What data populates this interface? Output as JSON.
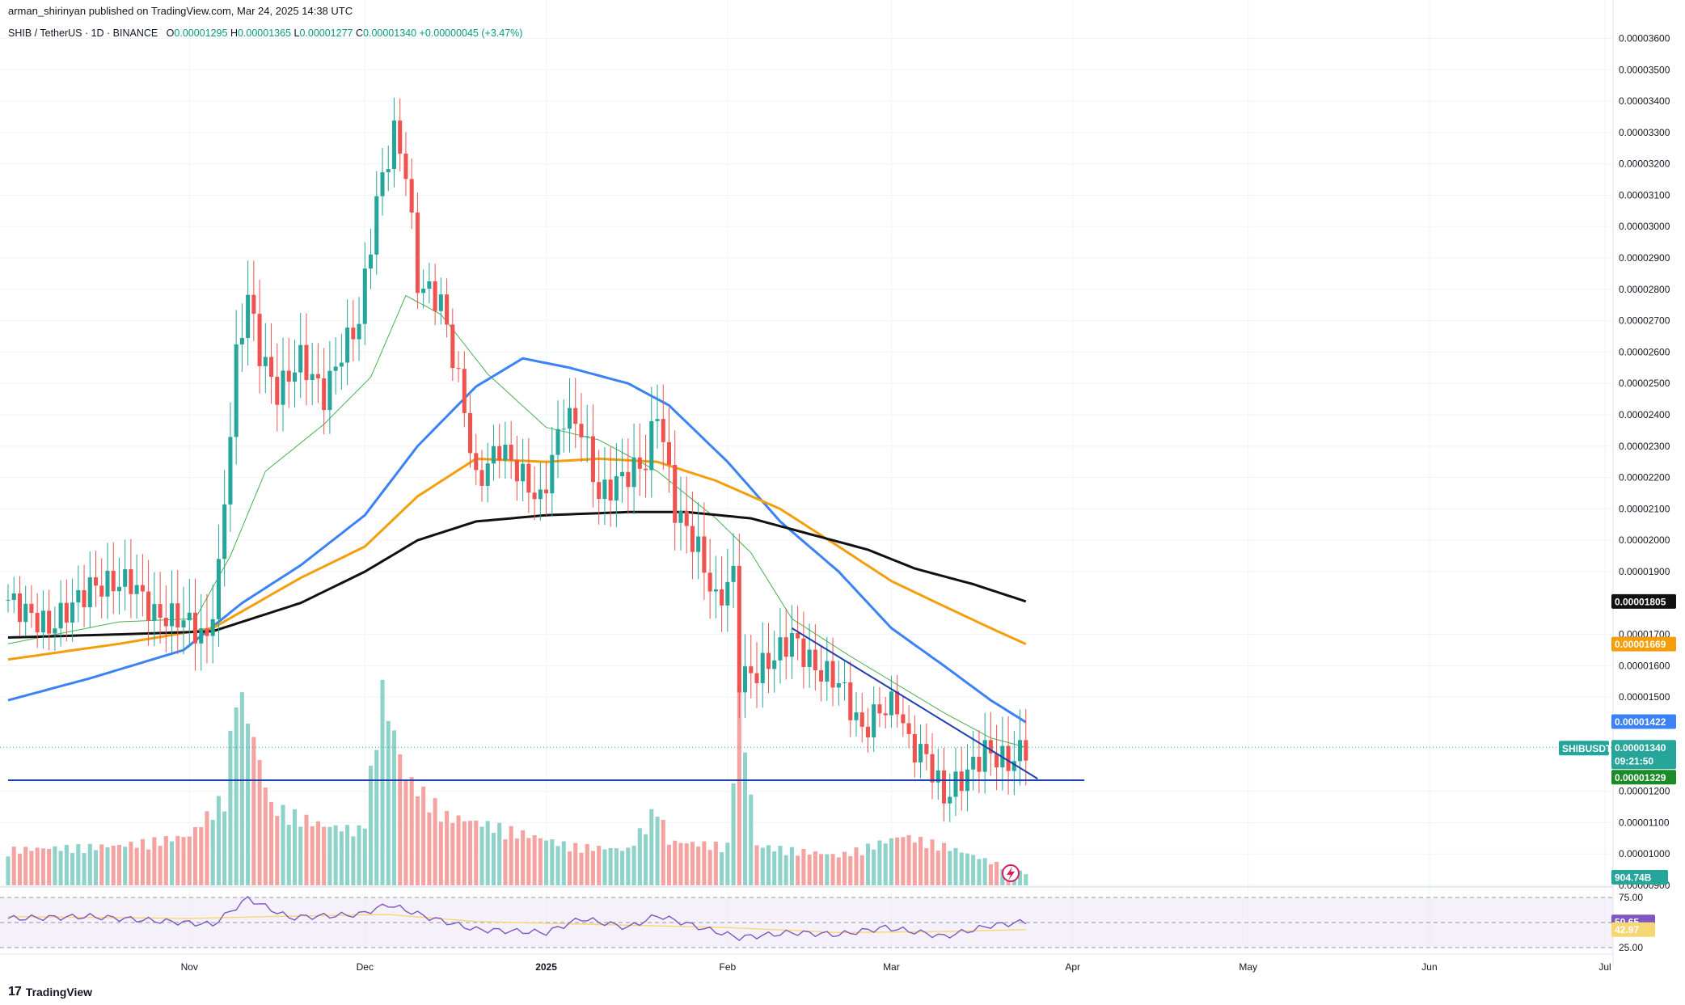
{
  "header": {
    "published": "arman_shirinyan published on TradingView.com, Mar 24, 2025 14:38 UTC",
    "symbol": "SHIB / TetherUS · 1D · BINANCE",
    "o_label": "O",
    "o_value": "0.00001295",
    "h_label": "H",
    "h_value": "0.00001365",
    "l_label": "L",
    "l_value": "0.00001277",
    "c_label": "C",
    "c_value": "0.00001340",
    "change": "+0.00000045 (+3.47%)"
  },
  "brand": {
    "logo_text": "TradingView",
    "logo_mark": "17"
  },
  "colors": {
    "up": "#26a69a",
    "down": "#ef5350",
    "vol_up": "#8fd2c9",
    "vol_down": "#f5a3a1",
    "ma_fast": "#4caf50",
    "ma_blue": "#3b82f6",
    "ma_orange": "#f59e0b",
    "ma_black": "#111111",
    "trendline": "#1e40af",
    "rsi": "#7e57c2",
    "rsi_ma": "#f7d774",
    "rsi_bg": "#ede7f6"
  },
  "chart_data": {
    "type": "candlestick",
    "title": "SHIB / TetherUS · 1D · BINANCE",
    "ylim": [
      9e-06,
      3.645e-05
    ],
    "y_ticks": [
      "0.00003600",
      "0.00003500",
      "0.00003400",
      "0.00003300",
      "0.00003200",
      "0.00003100",
      "0.00003000",
      "0.00002900",
      "0.00002800",
      "0.00002700",
      "0.00002600",
      "0.00002500",
      "0.00002400",
      "0.00002300",
      "0.00002200",
      "0.00002100",
      "0.00002000",
      "0.00001900",
      "0.00001700",
      "0.00001600",
      "0.00001500",
      "0.00001200",
      "0.00001100",
      "0.00001000",
      "0.00000900"
    ],
    "x_ticks": [
      "Nov",
      "Dec",
      "2025",
      "Feb",
      "Mar",
      "Apr",
      "May",
      "Jun",
      "Jul"
    ],
    "x_range": [
      "2024-10-01",
      "2025-07-01"
    ],
    "price_anchors": [
      [
        "2024-10-01",
        1.81
      ],
      [
        "2024-10-08",
        1.72
      ],
      [
        "2024-10-15",
        1.85
      ],
      [
        "2024-10-22",
        1.87
      ],
      [
        "2024-10-26",
        1.76
      ],
      [
        "2024-10-31",
        1.75
      ],
      [
        "2024-11-04",
        1.68
      ],
      [
        "2024-11-06",
        1.9
      ],
      [
        "2024-11-09",
        2.58
      ],
      [
        "2024-11-11",
        2.78
      ],
      [
        "2024-11-13",
        2.6
      ],
      [
        "2024-11-16",
        2.47
      ],
      [
        "2024-11-20",
        2.58
      ],
      [
        "2024-11-24",
        2.46
      ],
      [
        "2024-11-27",
        2.6
      ],
      [
        "2024-11-30",
        2.7
      ],
      [
        "2024-12-03",
        3.08
      ],
      [
        "2024-12-06",
        3.3
      ],
      [
        "2024-12-08",
        3.18
      ],
      [
        "2024-12-10",
        2.82
      ],
      [
        "2024-12-14",
        2.76
      ],
      [
        "2024-12-18",
        2.42
      ],
      [
        "2024-12-20",
        2.18
      ],
      [
        "2024-12-24",
        2.3
      ],
      [
        "2024-12-28",
        2.2
      ],
      [
        "2024-12-31",
        2.12
      ],
      [
        "2025-01-04",
        2.4
      ],
      [
        "2025-01-07",
        2.36
      ],
      [
        "2025-01-10",
        2.14
      ],
      [
        "2025-01-14",
        2.2
      ],
      [
        "2025-01-18",
        2.25
      ],
      [
        "2025-01-20",
        2.42
      ],
      [
        "2025-01-23",
        2.1
      ],
      [
        "2025-01-27",
        1.97
      ],
      [
        "2025-01-30",
        1.8
      ],
      [
        "2025-02-02",
        1.89
      ],
      [
        "2025-02-03",
        1.56
      ],
      [
        "2025-02-06",
        1.58
      ],
      [
        "2025-02-09",
        1.63
      ],
      [
        "2025-02-12",
        1.69
      ],
      [
        "2025-02-16",
        1.59
      ],
      [
        "2025-02-20",
        1.55
      ],
      [
        "2025-02-24",
        1.39
      ],
      [
        "2025-02-27",
        1.46
      ],
      [
        "2025-03-02",
        1.48
      ],
      [
        "2025-03-04",
        1.35
      ],
      [
        "2025-03-07",
        1.31
      ],
      [
        "2025-03-10",
        1.18
      ],
      [
        "2025-03-14",
        1.26
      ],
      [
        "2025-03-17",
        1.33
      ],
      [
        "2025-03-21",
        1.29
      ],
      [
        "2025-03-24",
        1.34
      ]
    ],
    "moving_averages": [
      {
        "color": "ma_fast",
        "points": [
          [
            "2024-10-01",
            1.67
          ],
          [
            "2024-10-20",
            1.74
          ],
          [
            "2024-11-02",
            1.75
          ],
          [
            "2024-11-08",
            1.95
          ],
          [
            "2024-11-14",
            2.22
          ],
          [
            "2024-11-24",
            2.37
          ],
          [
            "2024-12-02",
            2.52
          ],
          [
            "2024-12-08",
            2.78
          ],
          [
            "2024-12-14",
            2.72
          ],
          [
            "2024-12-22",
            2.53
          ],
          [
            "2025-01-01",
            2.36
          ],
          [
            "2025-01-10",
            2.32
          ],
          [
            "2025-01-20",
            2.22
          ],
          [
            "2025-01-30",
            2.07
          ],
          [
            "2025-02-05",
            1.96
          ],
          [
            "2025-02-12",
            1.75
          ],
          [
            "2025-02-22",
            1.63
          ],
          [
            "2025-03-02",
            1.54
          ],
          [
            "2025-03-10",
            1.45
          ],
          [
            "2025-03-18",
            1.37
          ],
          [
            "2025-03-24",
            1.34
          ]
        ]
      },
      {
        "color": "ma_blue",
        "points": [
          [
            "2024-10-01",
            1.49
          ],
          [
            "2024-10-15",
            1.56
          ],
          [
            "2024-10-31",
            1.65
          ],
          [
            "2024-11-10",
            1.8
          ],
          [
            "2024-11-20",
            1.92
          ],
          [
            "2024-12-01",
            2.08
          ],
          [
            "2024-12-10",
            2.3
          ],
          [
            "2024-12-20",
            2.49
          ],
          [
            "2024-12-28",
            2.58
          ],
          [
            "2025-01-05",
            2.55
          ],
          [
            "2025-01-15",
            2.5
          ],
          [
            "2025-01-22",
            2.43
          ],
          [
            "2025-02-01",
            2.25
          ],
          [
            "2025-02-10",
            2.06
          ],
          [
            "2025-02-20",
            1.9
          ],
          [
            "2025-03-01",
            1.72
          ],
          [
            "2025-03-10",
            1.6
          ],
          [
            "2025-03-18",
            1.49
          ],
          [
            "2025-03-24",
            1.42
          ]
        ]
      },
      {
        "color": "ma_orange",
        "points": [
          [
            "2024-10-01",
            1.62
          ],
          [
            "2024-10-20",
            1.67
          ],
          [
            "2024-11-05",
            1.72
          ],
          [
            "2024-11-20",
            1.88
          ],
          [
            "2024-12-01",
            1.98
          ],
          [
            "2024-12-10",
            2.14
          ],
          [
            "2024-12-20",
            2.26
          ],
          [
            "2025-01-01",
            2.25
          ],
          [
            "2025-01-10",
            2.26
          ],
          [
            "2025-01-20",
            2.25
          ],
          [
            "2025-01-30",
            2.19
          ],
          [
            "2025-02-10",
            2.1
          ],
          [
            "2025-02-20",
            1.98
          ],
          [
            "2025-03-01",
            1.87
          ],
          [
            "2025-03-10",
            1.79
          ],
          [
            "2025-03-18",
            1.72
          ],
          [
            "2025-03-24",
            1.669
          ]
        ]
      },
      {
        "color": "ma_black",
        "points": [
          [
            "2024-10-01",
            1.69
          ],
          [
            "2024-10-20",
            1.7
          ],
          [
            "2024-11-05",
            1.71
          ],
          [
            "2024-11-20",
            1.8
          ],
          [
            "2024-12-01",
            1.9
          ],
          [
            "2024-12-10",
            2.0
          ],
          [
            "2024-12-20",
            2.06
          ],
          [
            "2025-01-01",
            2.08
          ],
          [
            "2025-01-15",
            2.09
          ],
          [
            "2025-01-25",
            2.09
          ],
          [
            "2025-02-05",
            2.07
          ],
          [
            "2025-02-15",
            2.02
          ],
          [
            "2025-02-25",
            1.97
          ],
          [
            "2025-03-05",
            1.91
          ],
          [
            "2025-03-15",
            1.86
          ],
          [
            "2025-03-24",
            1.805
          ]
        ]
      }
    ],
    "volume_anchors": [
      [
        "2024-10-01",
        0.18
      ],
      [
        "2024-10-20",
        0.2
      ],
      [
        "2024-11-01",
        0.25
      ],
      [
        "2024-11-07",
        0.45
      ],
      [
        "2024-11-09",
        1.0
      ],
      [
        "2024-11-11",
        0.85
      ],
      [
        "2024-11-15",
        0.4
      ],
      [
        "2024-11-24",
        0.3
      ],
      [
        "2024-11-30",
        0.28
      ],
      [
        "2024-12-01",
        0.35
      ],
      [
        "2024-12-04",
        0.98
      ],
      [
        "2024-12-08",
        0.55
      ],
      [
        "2024-12-15",
        0.35
      ],
      [
        "2024-12-23",
        0.3
      ],
      [
        "2025-01-05",
        0.2
      ],
      [
        "2025-01-15",
        0.18
      ],
      [
        "2025-01-20",
        0.4
      ],
      [
        "2025-01-22",
        0.22
      ],
      [
        "2025-02-01",
        0.2
      ],
      [
        "2025-02-03",
        0.95
      ],
      [
        "2025-02-06",
        0.2
      ],
      [
        "2025-02-20",
        0.15
      ],
      [
        "2025-03-03",
        0.25
      ],
      [
        "2025-03-10",
        0.2
      ],
      [
        "2025-03-20",
        0.1
      ],
      [
        "2025-03-24",
        0.06
      ]
    ],
    "trendline": [
      [
        "2025-02-12",
        1.72
      ],
      [
        "2025-03-26",
        1.24
      ]
    ],
    "support_line": {
      "value": 1.235,
      "from": "2024-10-01",
      "to": "2025-04-03"
    },
    "rsi": {
      "ylim": [
        25,
        75
      ],
      "levels": [
        "75.00",
        "25.00"
      ],
      "midline": 50,
      "points": [
        [
          "2024-10-01",
          54
        ],
        [
          "2024-10-15",
          56
        ],
        [
          "2024-10-31",
          50
        ],
        [
          "2024-11-05",
          48
        ],
        [
          "2024-11-11",
          74
        ],
        [
          "2024-11-18",
          55
        ],
        [
          "2024-11-30",
          58
        ],
        [
          "2024-12-05",
          68
        ],
        [
          "2024-12-12",
          55
        ],
        [
          "2024-12-20",
          43
        ],
        [
          "2025-01-01",
          40
        ],
        [
          "2025-01-07",
          54
        ],
        [
          "2025-01-15",
          45
        ],
        [
          "2025-01-20",
          57
        ],
        [
          "2025-01-28",
          44
        ],
        [
          "2025-02-03",
          35
        ],
        [
          "2025-02-12",
          40
        ],
        [
          "2025-02-20",
          38
        ],
        [
          "2025-02-28",
          45
        ],
        [
          "2025-03-06",
          40
        ],
        [
          "2025-03-10",
          36
        ],
        [
          "2025-03-18",
          47
        ],
        [
          "2025-03-24",
          50.65
        ]
      ],
      "ma_points": [
        [
          "2024-10-01",
          56
        ],
        [
          "2024-11-01",
          54
        ],
        [
          "2024-11-15",
          56
        ],
        [
          "2024-12-05",
          58
        ],
        [
          "2024-12-20",
          51
        ],
        [
          "2025-01-10",
          48
        ],
        [
          "2025-02-01",
          45
        ],
        [
          "2025-02-20",
          40
        ],
        [
          "2025-03-10",
          41
        ],
        [
          "2025-03-24",
          42.97
        ]
      ]
    },
    "tags": {
      "ma_black": "0.00001805",
      "ma_orange": "0.00001669",
      "ma_blue": "0.00001422",
      "symbol": "SHIBUSDT",
      "last_price": "0.00001340",
      "countdown": "09:21:50",
      "prev_price": "0.00001329",
      "volume": "904.74B",
      "rsi": "50.65",
      "rsi_ma": "42.97"
    }
  }
}
